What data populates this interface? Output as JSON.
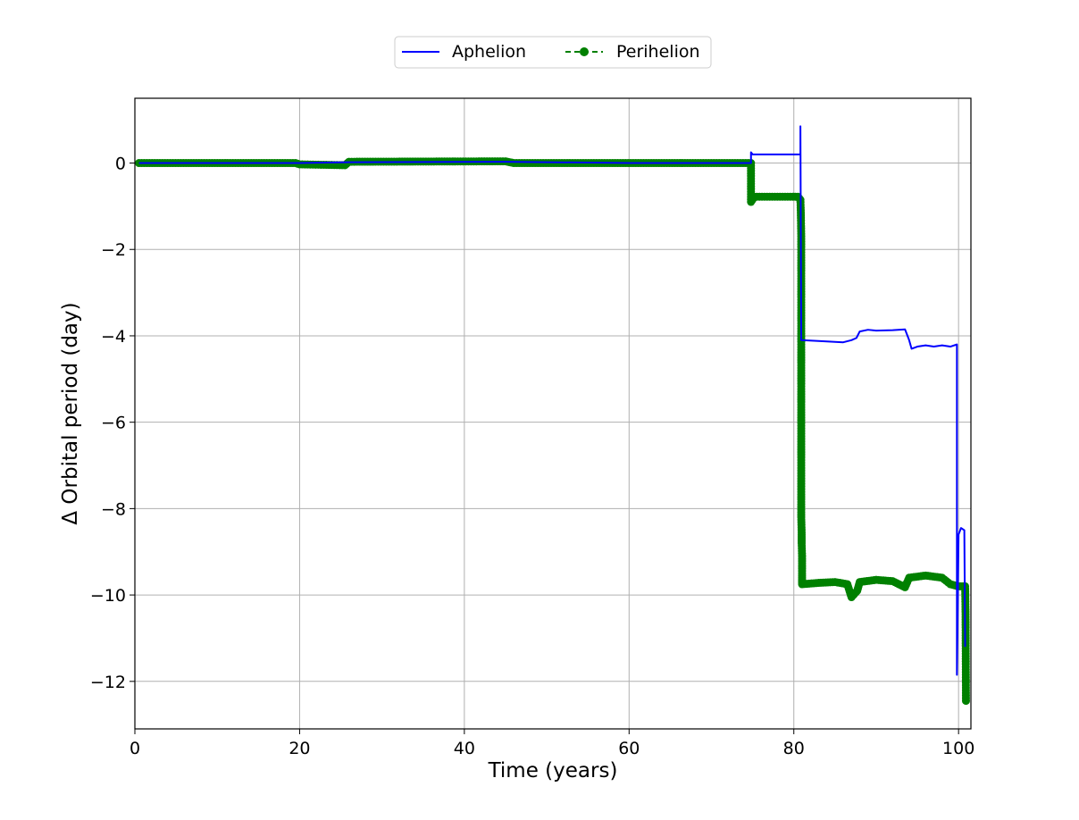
{
  "chart_data": {
    "type": "line",
    "title": "",
    "xlabel": "Time (years)",
    "ylabel": "Δ Orbital period (day)",
    "xlim": [
      0,
      101.5
    ],
    "ylim": [
      -13.1,
      1.5
    ],
    "xticks": [
      0,
      20,
      40,
      60,
      80,
      100
    ],
    "yticks": [
      0,
      -2,
      -4,
      -6,
      -8,
      -10,
      -12
    ],
    "xtick_labels": [
      "0",
      "20",
      "40",
      "60",
      "80",
      "100"
    ],
    "ytick_labels": [
      "0",
      "−2",
      "−4",
      "−6",
      "−8",
      "−10",
      "−12"
    ],
    "grid": true,
    "legend": {
      "placement": "top-center-outside",
      "columns": 2
    },
    "series": [
      {
        "name": "Aphelion",
        "color": "#0000ff",
        "linestyle": "solid",
        "marker": "none",
        "points": [
          [
            0.5,
            0.0
          ],
          [
            20,
            0.0
          ],
          [
            26,
            0.02
          ],
          [
            45,
            0.03
          ],
          [
            60,
            0.0
          ],
          [
            70,
            0.0
          ],
          [
            74.8,
            0.0
          ],
          [
            74.8,
            0.25
          ],
          [
            75.0,
            0.2
          ],
          [
            80.8,
            0.2
          ],
          [
            80.8,
            0.85
          ],
          [
            80.9,
            -4.1
          ],
          [
            83,
            -4.12
          ],
          [
            86,
            -4.15
          ],
          [
            87,
            -4.1
          ],
          [
            87.6,
            -4.05
          ],
          [
            88.0,
            -3.9
          ],
          [
            89,
            -3.86
          ],
          [
            90,
            -3.88
          ],
          [
            92,
            -3.87
          ],
          [
            93.5,
            -3.85
          ],
          [
            94.0,
            -4.1
          ],
          [
            94.3,
            -4.3
          ],
          [
            95.0,
            -4.25
          ],
          [
            96,
            -4.22
          ],
          [
            97,
            -4.25
          ],
          [
            98,
            -4.22
          ],
          [
            99,
            -4.25
          ],
          [
            99.8,
            -4.2
          ],
          [
            99.8,
            -8.6
          ],
          [
            99.8,
            -11.85
          ],
          [
            100.0,
            -8.6
          ],
          [
            100.3,
            -8.45
          ],
          [
            100.7,
            -8.5
          ],
          [
            100.8,
            -11.2
          ]
        ]
      },
      {
        "name": "Perihelion",
        "color": "#008000",
        "linestyle": "dashed",
        "marker": "circle",
        "points": [
          [
            0.5,
            0.0
          ],
          [
            10,
            0.0
          ],
          [
            19.5,
            0.0
          ],
          [
            20,
            -0.03
          ],
          [
            25.5,
            -0.05
          ],
          [
            26,
            0.03
          ],
          [
            45,
            0.04
          ],
          [
            46,
            0.0
          ],
          [
            58,
            0.0
          ],
          [
            63,
            0.0
          ],
          [
            69,
            0.0
          ],
          [
            74.8,
            0.0
          ],
          [
            74.8,
            -0.9
          ],
          [
            75.2,
            -0.78
          ],
          [
            80.5,
            -0.78
          ],
          [
            80.8,
            -0.85
          ],
          [
            80.85,
            -1.15
          ],
          [
            80.9,
            -1.7
          ],
          [
            80.9,
            -3.65
          ],
          [
            80.9,
            -6.2
          ],
          [
            80.9,
            -7.55
          ],
          [
            80.9,
            -8.2
          ],
          [
            80.95,
            -8.55
          ],
          [
            80.95,
            -8.8
          ],
          [
            81.0,
            -9.1
          ],
          [
            81.0,
            -9.5
          ],
          [
            81.0,
            -9.75
          ],
          [
            83,
            -9.72
          ],
          [
            85,
            -9.7
          ],
          [
            86.5,
            -9.75
          ],
          [
            87,
            -10.05
          ],
          [
            87.7,
            -9.9
          ],
          [
            88,
            -9.7
          ],
          [
            90,
            -9.65
          ],
          [
            92,
            -9.68
          ],
          [
            93.5,
            -9.82
          ],
          [
            94,
            -9.6
          ],
          [
            96,
            -9.55
          ],
          [
            98,
            -9.6
          ],
          [
            99,
            -9.75
          ],
          [
            100,
            -9.8
          ],
          [
            100.8,
            -9.8
          ],
          [
            100.85,
            -10.45
          ],
          [
            100.9,
            -12.45
          ]
        ]
      }
    ]
  }
}
